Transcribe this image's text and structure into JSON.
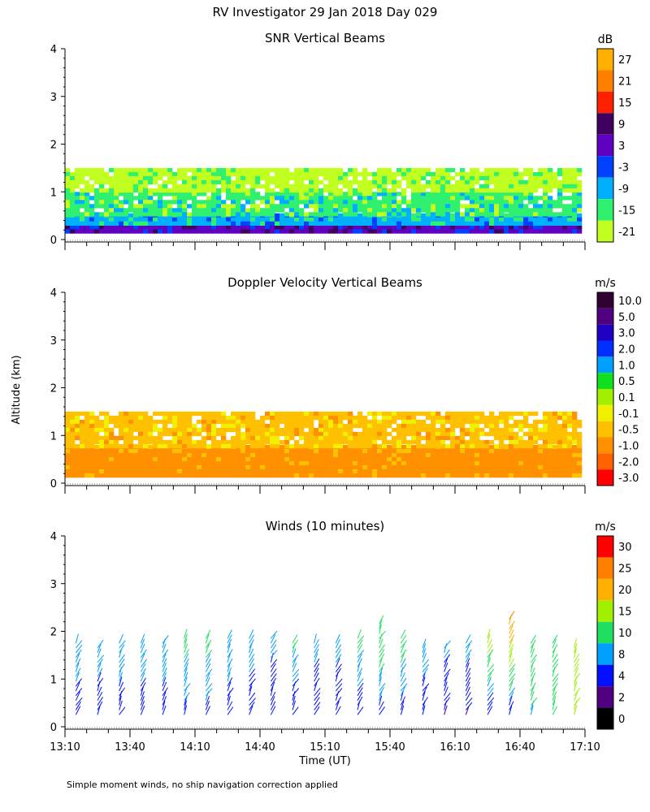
{
  "title": "RV Investigator  29 Jan 2018 Day 029",
  "ylabel": "Altitude (km)",
  "xlabel": "Time (UT)",
  "footnote": "Simple moment winds, no ship navigation correction applied",
  "chart_data": [
    {
      "type": "heatmap",
      "title": "SNR Vertical Beams",
      "ylim": [
        0,
        4
      ],
      "yticks": [
        "0",
        "1",
        "2",
        "3",
        "4"
      ],
      "xlim": [
        "13:10",
        "17:10"
      ],
      "colorbar": {
        "unit": "dB",
        "labels": [
          "27",
          "21",
          "15",
          "9",
          "3",
          "-3",
          "-9",
          "-15",
          "-21"
        ],
        "colors": [
          "#ffb000",
          "#ff8000",
          "#ff2000",
          "#400060",
          "#6000c0",
          "#0040ff",
          "#00b0ff",
          "#30f070",
          "#c0ff20"
        ]
      },
      "data_summary": {
        "echo_top_km": 1.5,
        "echo_bottom_km": 0.2,
        "bands": [
          {
            "from_km": 0.2,
            "to_km": 0.3,
            "snr_db": 3
          },
          {
            "from_km": 0.3,
            "to_km": 0.55,
            "snr_db": -9
          },
          {
            "from_km": 0.55,
            "to_km": 1.0,
            "snr_db": -15
          },
          {
            "from_km": 1.0,
            "to_km": 1.5,
            "snr_db": -21
          }
        ]
      }
    },
    {
      "type": "heatmap",
      "title": "Doppler Velocity Vertical Beams",
      "ylim": [
        0,
        4
      ],
      "yticks": [
        "0",
        "1",
        "2",
        "3",
        "4"
      ],
      "xlim": [
        "13:10",
        "17:10"
      ],
      "colorbar": {
        "unit": "m/s",
        "labels": [
          "10.0",
          "5.0",
          "3.0",
          "2.0",
          "1.0",
          "0.5",
          "0.1",
          "-0.1",
          "-0.5",
          "-1.0",
          "-2.0",
          "-3.0"
        ],
        "colors": [
          "#300030",
          "#500080",
          "#2000c0",
          "#0030ff",
          "#00a0ff",
          "#10e020",
          "#a0f000",
          "#f0f000",
          "#ffc000",
          "#ff9000",
          "#ff6000",
          "#ff0000"
        ]
      },
      "data_summary": {
        "echo_top_km": 1.5,
        "echo_bottom_km": 0.2,
        "bands": [
          {
            "from_km": 0.2,
            "to_km": 0.8,
            "velocity_ms": -1.0
          },
          {
            "from_km": 0.8,
            "to_km": 1.5,
            "velocity_ms": -0.5
          }
        ]
      }
    },
    {
      "type": "scatter",
      "title": "Winds (10 minutes)",
      "ylim": [
        0,
        4
      ],
      "yticks": [
        "0",
        "1",
        "2",
        "3",
        "4"
      ],
      "xlim": [
        "13:10",
        "17:10"
      ],
      "colorbar": {
        "unit": "m/s",
        "labels": [
          "30",
          "25",
          "20",
          "15",
          "10",
          "8",
          "4",
          "2",
          "0"
        ],
        "colors": [
          "#ff0000",
          "#ff8000",
          "#ffb000",
          "#a0f000",
          "#20e060",
          "#00a0ff",
          "#0010ff",
          "#500080",
          "#000000"
        ]
      },
      "x": [
        "13:15",
        "13:25",
        "13:35",
        "13:45",
        "13:55",
        "14:05",
        "14:15",
        "14:25",
        "14:35",
        "14:45",
        "14:55",
        "15:05",
        "15:15",
        "15:25",
        "15:35",
        "15:45",
        "15:55",
        "16:05",
        "16:15",
        "16:25",
        "16:35",
        "16:45",
        "16:55",
        "17:05"
      ],
      "profile_top_km": [
        1.8,
        1.7,
        1.8,
        1.8,
        1.8,
        1.9,
        1.9,
        1.9,
        1.9,
        1.9,
        1.8,
        1.8,
        1.8,
        1.9,
        2.2,
        1.9,
        1.7,
        1.7,
        1.8,
        1.9,
        2.3,
        1.8,
        1.8,
        1.7
      ],
      "speeds_lower_ms": [
        6,
        5,
        6,
        6,
        6,
        7,
        7,
        6,
        5,
        5,
        5,
        5,
        5,
        6,
        6,
        6,
        5,
        3,
        3,
        3,
        3,
        9,
        12,
        15
      ],
      "speeds_upper_ms": [
        10,
        10,
        10,
        10,
        10,
        11,
        11,
        10,
        10,
        9,
        11,
        9,
        9,
        11,
        14,
        12,
        10,
        9,
        10,
        18,
        26,
        14,
        14,
        15
      ],
      "xticks": [
        "13:10",
        "13:40",
        "14:10",
        "14:40",
        "15:10",
        "15:40",
        "16:10",
        "16:40",
        "17:10"
      ]
    }
  ]
}
